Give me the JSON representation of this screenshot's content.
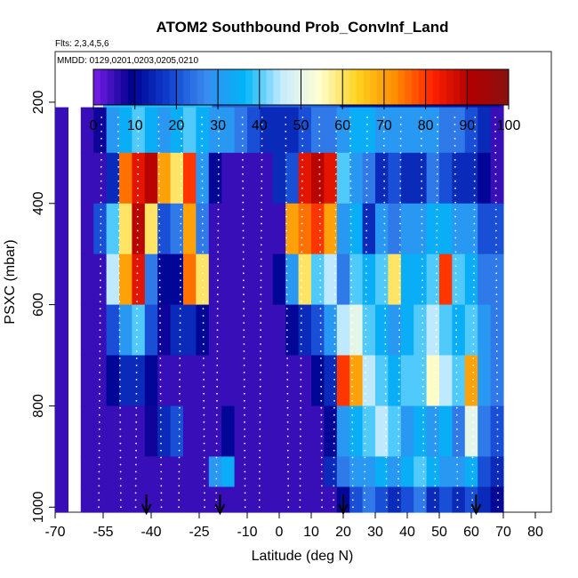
{
  "chart_data": {
    "type": "heatmap",
    "title": "ATOM2 Southbound Prob_ConvInf_Land",
    "subtitle_flights": "Flts: 2,3,4,5,6",
    "annotation_dates": "MMDD: 0129,0201,0203,0205,0210",
    "xlabel": "Latitude (deg N)",
    "ylabel": "PSXC (mbar)",
    "xlim": [
      -70,
      85
    ],
    "ylim": [
      1010,
      100
    ],
    "x_ticks": [
      -70,
      -55,
      -40,
      -25,
      -10,
      0,
      10,
      20,
      30,
      40,
      50,
      60,
      70,
      80
    ],
    "x_tick_labels": [
      "-70",
      "-55",
      "-40",
      "-25",
      "-10",
      "0",
      "10",
      "20",
      "30",
      "40",
      "50",
      "60",
      "70",
      "80"
    ],
    "y_ticks": [
      200,
      400,
      600,
      800,
      1000
    ],
    "y_tick_labels": [
      "200",
      "400",
      "600",
      "800",
      "1000"
    ],
    "colorbar": {
      "range": [
        0,
        100
      ],
      "ticks": [
        0,
        10,
        20,
        30,
        40,
        50,
        60,
        70,
        80,
        90,
        100
      ],
      "tick_labels": [
        "0",
        "10",
        "20",
        "30",
        "40",
        "50",
        "60",
        "70",
        "80",
        "90",
        "100"
      ],
      "colors": [
        "#7b1fe8",
        "#00008f",
        "#1040d0",
        "#3a8cf0",
        "#00b4f8",
        "#c8ecff",
        "#ffffd0",
        "#ffd21e",
        "#ff8c00",
        "#ff2000",
        "#b00000",
        "#8b1010"
      ]
    },
    "arrows_latitude": [
      -41.5,
      -18.5,
      20,
      61.5
    ],
    "profile_columns": [
      {
        "lat": -68,
        "top": 210,
        "vals": [
          5,
          5,
          5,
          5,
          5,
          5,
          5,
          5,
          5
        ]
      },
      {
        "lat": -60,
        "top": 210,
        "vals": [
          5,
          5,
          5,
          5,
          5,
          5,
          5,
          5,
          5
        ]
      },
      {
        "lat": -56,
        "top": 210,
        "vals": [
          8,
          5,
          20,
          5,
          5,
          5,
          5,
          5,
          5
        ]
      },
      {
        "lat": -52,
        "top": 170,
        "vals": [
          30,
          15,
          40,
          45,
          20,
          10,
          5,
          5,
          5
        ]
      },
      {
        "lat": -48,
        "top": 170,
        "vals": [
          35,
          75,
          60,
          70,
          30,
          15,
          5,
          5,
          5
        ]
      },
      {
        "lat": -44,
        "top": 170,
        "vals": [
          40,
          85,
          90,
          85,
          40,
          15,
          5,
          5,
          5
        ]
      },
      {
        "lat": -40,
        "top": 170,
        "vals": [
          35,
          90,
          60,
          25,
          20,
          10,
          8,
          5,
          5
        ]
      },
      {
        "lat": -36,
        "top": 170,
        "vals": [
          30,
          70,
          20,
          10,
          8,
          5,
          15,
          5,
          5
        ]
      },
      {
        "lat": -32,
        "top": 170,
        "vals": [
          35,
          60,
          25,
          10,
          15,
          5,
          20,
          5,
          5
        ]
      },
      {
        "lat": -28,
        "top": 170,
        "vals": [
          40,
          80,
          70,
          75,
          15,
          5,
          5,
          5,
          5
        ]
      },
      {
        "lat": -24,
        "top": 170,
        "vals": [
          35,
          30,
          25,
          60,
          10,
          5,
          5,
          5,
          5
        ]
      },
      {
        "lat": -20,
        "top": 170,
        "vals": [
          30,
          10,
          5,
          5,
          5,
          5,
          5,
          30,
          5
        ]
      },
      {
        "lat": -16,
        "top": 170,
        "vals": [
          30,
          5,
          5,
          5,
          5,
          5,
          10,
          35,
          5
        ]
      },
      {
        "lat": -12,
        "top": 170,
        "vals": [
          25,
          5,
          5,
          5,
          5,
          5,
          5,
          5,
          5
        ]
      },
      {
        "lat": -8,
        "top": 170,
        "vals": [
          20,
          5,
          5,
          5,
          5,
          5,
          5,
          5,
          5
        ]
      },
      {
        "lat": -4,
        "top": 170,
        "vals": [
          15,
          5,
          5,
          5,
          5,
          5,
          5,
          5,
          5
        ]
      },
      {
        "lat": 0,
        "top": 170,
        "vals": [
          15,
          15,
          5,
          10,
          5,
          5,
          5,
          5,
          5
        ]
      },
      {
        "lat": 4,
        "top": 170,
        "vals": [
          15,
          20,
          70,
          30,
          10,
          5,
          5,
          5,
          5
        ]
      },
      {
        "lat": 8,
        "top": 170,
        "vals": [
          20,
          85,
          75,
          60,
          15,
          5,
          5,
          5,
          5
        ]
      },
      {
        "lat": 12,
        "top": 170,
        "vals": [
          25,
          90,
          80,
          40,
          20,
          10,
          5,
          5,
          5
        ]
      },
      {
        "lat": 16,
        "top": 170,
        "vals": [
          25,
          85,
          70,
          45,
          30,
          15,
          10,
          15,
          5
        ]
      },
      {
        "lat": 20,
        "top": 170,
        "vals": [
          30,
          40,
          30,
          25,
          45,
          80,
          30,
          25,
          10
        ]
      },
      {
        "lat": 24,
        "top": 170,
        "vals": [
          35,
          30,
          35,
          40,
          50,
          70,
          35,
          30,
          20
        ]
      },
      {
        "lat": 28,
        "top": 170,
        "vals": [
          35,
          25,
          15,
          35,
          40,
          45,
          40,
          30,
          25
        ]
      },
      {
        "lat": 32,
        "top": 170,
        "vals": [
          30,
          15,
          30,
          40,
          35,
          40,
          45,
          35,
          20
        ]
      },
      {
        "lat": 36,
        "top": 170,
        "vals": [
          30,
          20,
          25,
          60,
          30,
          35,
          40,
          30,
          15
        ]
      },
      {
        "lat": 40,
        "top": 170,
        "vals": [
          30,
          15,
          30,
          35,
          35,
          40,
          30,
          35,
          20
        ]
      },
      {
        "lat": 44,
        "top": 170,
        "vals": [
          30,
          15,
          30,
          35,
          40,
          40,
          35,
          40,
          25
        ]
      },
      {
        "lat": 48,
        "top": 170,
        "vals": [
          30,
          25,
          35,
          40,
          45,
          55,
          30,
          35,
          15
        ]
      },
      {
        "lat": 52,
        "top": 170,
        "vals": [
          25,
          20,
          35,
          80,
          40,
          45,
          35,
          30,
          20
        ]
      },
      {
        "lat": 56,
        "top": 170,
        "vals": [
          25,
          15,
          30,
          40,
          35,
          40,
          25,
          30,
          15
        ]
      },
      {
        "lat": 60,
        "top": 170,
        "vals": [
          20,
          15,
          30,
          35,
          40,
          70,
          50,
          35,
          20
        ]
      },
      {
        "lat": 64,
        "top": 170,
        "vals": [
          15,
          10,
          20,
          25,
          30,
          30,
          25,
          20,
          15
        ]
      },
      {
        "lat": 68,
        "top": 170,
        "vals": [
          5,
          5,
          20,
          25,
          25,
          25,
          20,
          15,
          10
        ]
      }
    ]
  }
}
